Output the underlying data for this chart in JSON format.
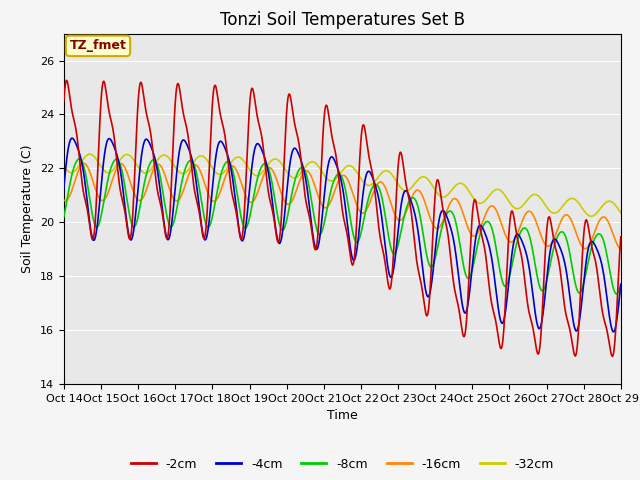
{
  "title": "Tonzi Soil Temperatures Set B",
  "xlabel": "Time",
  "ylabel": "Soil Temperature (C)",
  "ylim": [
    14,
    27
  ],
  "xlim": [
    24,
    384
  ],
  "x_tick_labels": [
    "Oct 14",
    "Oct 15",
    "Oct 16",
    "Oct 17",
    "Oct 18",
    "Oct 19",
    "Oct 20",
    "Oct 21",
    "Oct 22",
    "Oct 23",
    "Oct 24",
    "Oct 25",
    "Oct 26",
    "Oct 27",
    "Oct 28",
    "Oct 29"
  ],
  "x_tick_positions": [
    24,
    48,
    72,
    96,
    120,
    144,
    168,
    192,
    216,
    240,
    264,
    288,
    312,
    336,
    360,
    384
  ],
  "annotation_text": "TZ_fmet",
  "line_colors": {
    "-2cm": "#cc0000",
    "-4cm": "#0000cc",
    "-8cm": "#00cc00",
    "-16cm": "#ff8800",
    "-32cm": "#cccc00"
  },
  "background_color": "#e8e8e8",
  "title_fontsize": 12,
  "legend_fontsize": 9,
  "axis_label_fontsize": 9,
  "tick_fontsize": 8
}
